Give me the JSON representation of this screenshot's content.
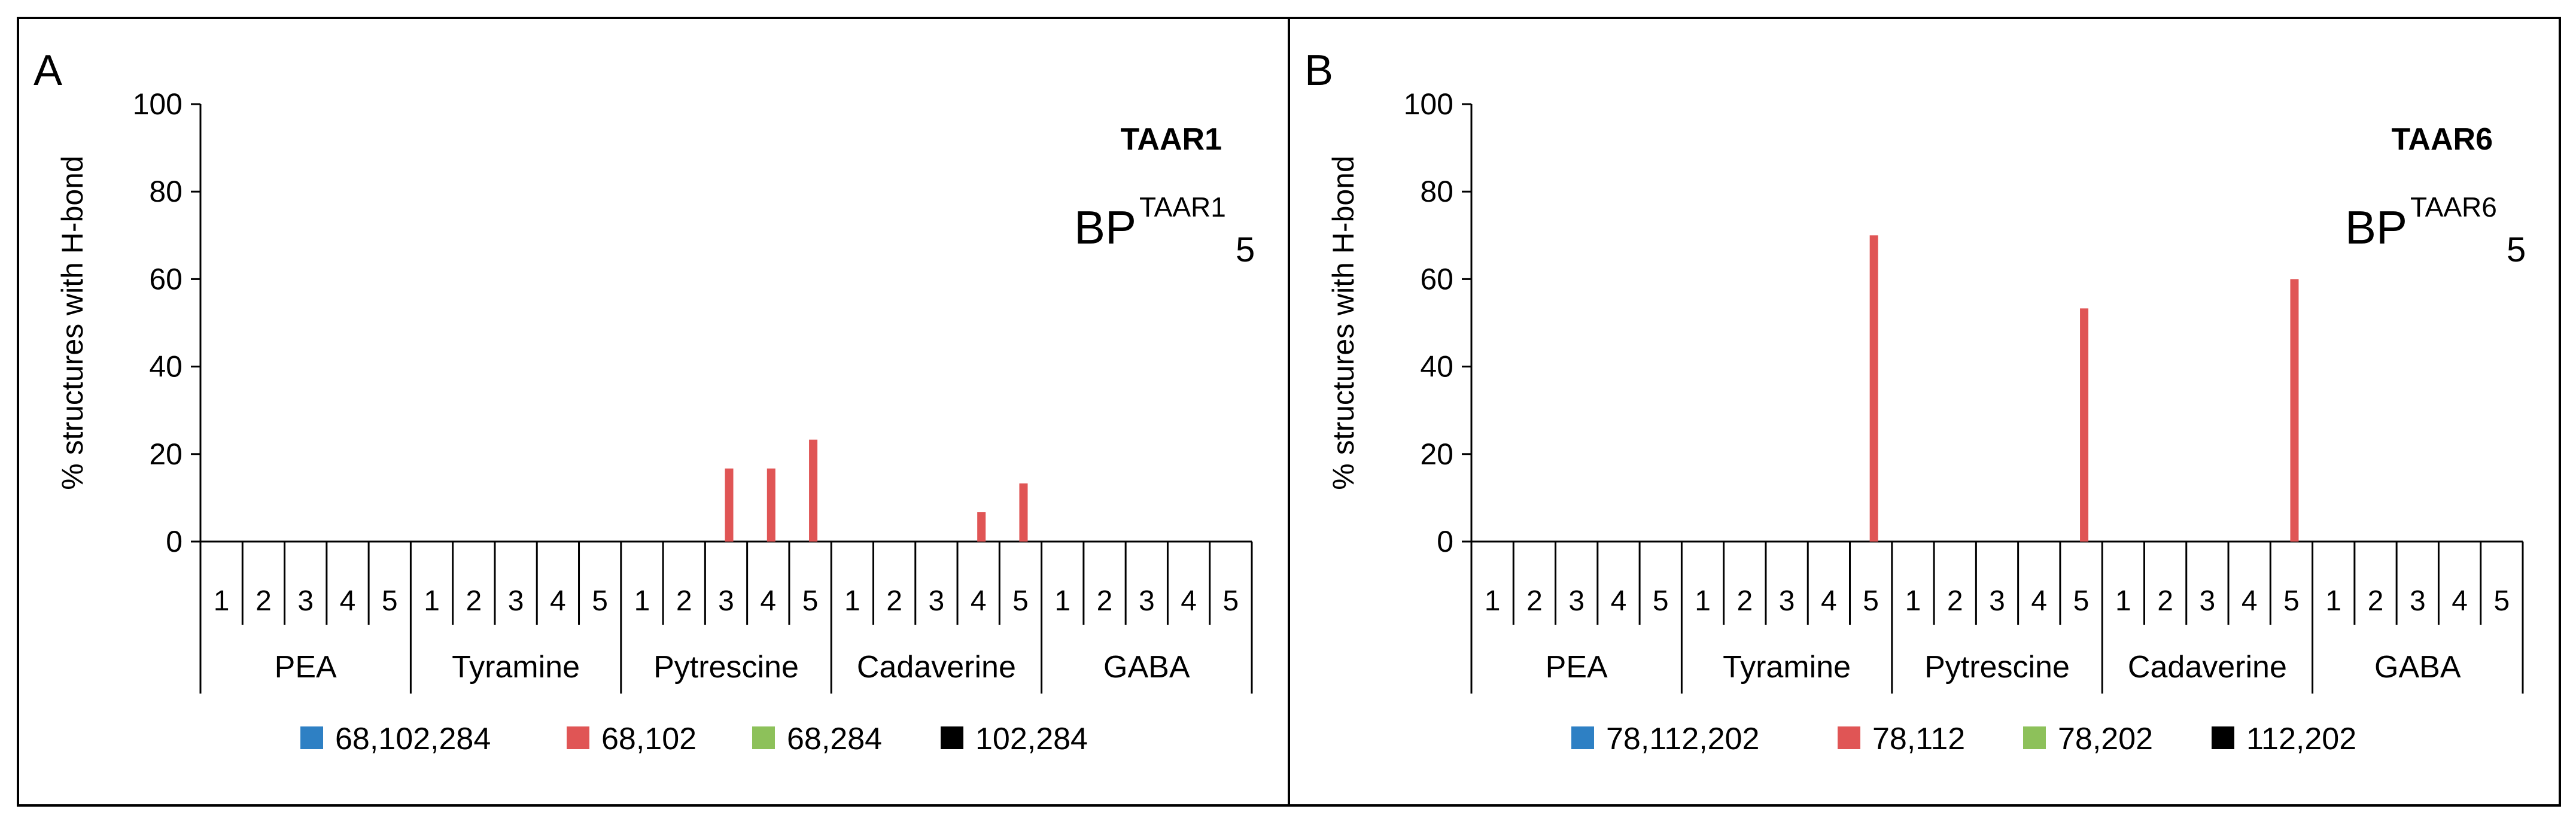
{
  "colors": {
    "s1": "#2E80C4",
    "s2": "#E05555",
    "s3": "#8DC15A",
    "s4": "#000000",
    "axis": "#000000"
  },
  "chart_data": [
    {
      "type": "bar",
      "panel_letter": "A",
      "gene_label": "TAAR1",
      "bp_main": "BP",
      "bp_sup": "TAAR1",
      "bp_sub": "5",
      "ylabel": "% structures with H-bond",
      "ylim": [
        0,
        100
      ],
      "yticks": [
        0,
        20,
        40,
        60,
        80,
        100
      ],
      "ytick_labels": [
        "0",
        "20",
        "40",
        "60",
        "80",
        "100"
      ],
      "groups": [
        "PEA",
        "Tyramine",
        "Pytrescine",
        "Cadaverine",
        "GABA"
      ],
      "subcategories": [
        "1",
        "2",
        "3",
        "4",
        "5"
      ],
      "series": [
        {
          "name": "68,102,284",
          "color_key": "s1",
          "values": [
            0,
            0,
            0,
            0,
            0,
            0,
            0,
            0,
            0,
            0,
            0,
            0,
            0,
            0,
            0,
            0,
            0,
            0,
            0,
            0,
            0,
            0,
            0,
            0,
            0
          ]
        },
        {
          "name": "68,102",
          "color_key": "s2",
          "values": [
            0,
            0,
            0,
            0,
            0,
            0,
            0,
            0,
            0,
            0,
            0,
            0,
            16.7,
            16.7,
            23.3,
            0,
            0,
            0,
            6.7,
            13.3,
            0,
            0,
            0,
            0,
            0
          ]
        },
        {
          "name": "68,284",
          "color_key": "s3",
          "values": [
            0,
            0,
            0,
            0,
            0,
            0,
            0,
            0,
            0,
            0,
            0,
            0,
            0,
            0,
            0,
            0,
            0,
            0,
            0,
            0,
            0,
            0,
            0,
            0,
            0
          ]
        },
        {
          "name": "102,284",
          "color_key": "s4",
          "values": [
            0,
            0,
            0,
            0,
            0,
            0,
            0,
            0,
            0,
            0,
            0,
            0,
            0,
            0,
            0,
            0,
            0,
            0,
            0,
            0,
            0,
            0,
            0,
            0,
            0
          ]
        }
      ]
    },
    {
      "type": "bar",
      "panel_letter": "B",
      "gene_label": "TAAR6",
      "bp_main": "BP",
      "bp_sup": "TAAR6",
      "bp_sub": "5",
      "ylabel": "% structures with H-bond",
      "ylim": [
        0,
        100
      ],
      "yticks": [
        0,
        20,
        40,
        60,
        80,
        100
      ],
      "ytick_labels": [
        "0",
        "20",
        "40",
        "60",
        "80",
        "100"
      ],
      "groups": [
        "PEA",
        "Tyramine",
        "Pytrescine",
        "Cadaverine",
        "GABA"
      ],
      "subcategories": [
        "1",
        "2",
        "3",
        "4",
        "5"
      ],
      "series": [
        {
          "name": "78,112,202",
          "color_key": "s1",
          "values": [
            0,
            0,
            0,
            0,
            0,
            0,
            0,
            0,
            0,
            0,
            0,
            0,
            0,
            0,
            0,
            0,
            0,
            0,
            0,
            0,
            0,
            0,
            0,
            0,
            0
          ]
        },
        {
          "name": "78,112",
          "color_key": "s2",
          "values": [
            0,
            0,
            0,
            0,
            0,
            0,
            0,
            0,
            0,
            70,
            0,
            0,
            0,
            0,
            53.3,
            0,
            0,
            0,
            0,
            60,
            0,
            0,
            0,
            0,
            0
          ]
        },
        {
          "name": "78,202",
          "color_key": "s3",
          "values": [
            0,
            0,
            0,
            0,
            0,
            0,
            0,
            0,
            0,
            0,
            0,
            0,
            0,
            0,
            0,
            0,
            0,
            0,
            0,
            0,
            0,
            0,
            0,
            0,
            0
          ]
        },
        {
          "name": "112,202",
          "color_key": "s4",
          "values": [
            0,
            0,
            0,
            0,
            0,
            0,
            0,
            0,
            0,
            0,
            0,
            0,
            0,
            0,
            0,
            0,
            0,
            0,
            0,
            0,
            0,
            0,
            0,
            0,
            0
          ]
        }
      ]
    }
  ]
}
